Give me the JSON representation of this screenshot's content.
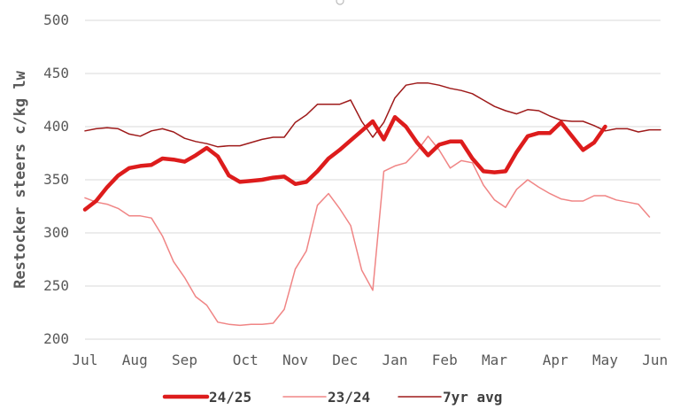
{
  "chart_data": {
    "type": "line",
    "title": "",
    "xlabel": "",
    "ylabel": "Restocker steers c/kg lw",
    "ylim": [
      200,
      500
    ],
    "yticks": [
      200,
      250,
      300,
      350,
      400,
      450,
      500
    ],
    "xlim": [
      1,
      53
    ],
    "x_ticks": [
      {
        "label": "Jul",
        "week": 1
      },
      {
        "label": "Aug",
        "week": 5.5
      },
      {
        "label": "Sep",
        "week": 10
      },
      {
        "label": "Oct",
        "week": 15.5
      },
      {
        "label": "Nov",
        "week": 20
      },
      {
        "label": "Dec",
        "week": 24.5
      },
      {
        "label": "Jan",
        "week": 29
      },
      {
        "label": "Feb",
        "week": 33.5
      },
      {
        "label": "Mar",
        "week": 38
      },
      {
        "label": "Apr",
        "week": 43.5
      },
      {
        "label": "May",
        "week": 48
      },
      {
        "label": "Jun",
        "week": 52.5
      }
    ],
    "grid": true,
    "legend_position": "bottom",
    "series": [
      {
        "name": "24/25",
        "color": "#dd1c1c",
        "width": 4.5,
        "x": [
          1,
          2,
          3,
          4,
          5,
          6,
          7,
          8,
          9,
          10,
          11,
          12,
          13,
          14,
          15,
          16,
          17,
          18,
          19,
          20,
          21,
          22,
          23,
          24,
          25,
          26,
          27,
          28,
          29,
          30,
          31,
          32,
          33,
          34,
          35,
          36,
          37,
          38,
          39,
          40,
          41,
          42,
          43,
          44,
          45,
          46,
          47,
          48,
          49,
          50,
          51
        ],
        "values": [
          322,
          330,
          343,
          354,
          361,
          363,
          364,
          370,
          369,
          367,
          373,
          380,
          372,
          354,
          348,
          349,
          350,
          352,
          353,
          346,
          348,
          358,
          370,
          378,
          387,
          396,
          405,
          388,
          409,
          400,
          385,
          373,
          383,
          386,
          386,
          370,
          358,
          357,
          358,
          376,
          391,
          394,
          394,
          404,
          391,
          378,
          385,
          400,
          null,
          null,
          null
        ]
      },
      {
        "name": "23/24",
        "color": "#f08585",
        "width": 1.5,
        "x": [
          1,
          2,
          3,
          4,
          5,
          6,
          7,
          8,
          9,
          10,
          11,
          12,
          13,
          14,
          15,
          16,
          17,
          18,
          19,
          20,
          21,
          22,
          23,
          24,
          25,
          26,
          27,
          28,
          29,
          30,
          31,
          32,
          33,
          34,
          35,
          36,
          37,
          38,
          39,
          40,
          41,
          42,
          43,
          44,
          45,
          46,
          47,
          48,
          49,
          50,
          51,
          52,
          53
        ],
        "values": [
          333,
          329,
          327,
          323,
          316,
          316,
          314,
          297,
          273,
          258,
          240,
          232,
          216,
          214,
          213,
          214,
          214,
          215,
          228,
          266,
          283,
          326,
          337,
          323,
          307,
          265,
          246,
          358,
          363,
          366,
          377,
          391,
          378,
          361,
          368,
          366,
          345,
          331,
          324,
          341,
          350,
          343,
          337,
          332,
          330,
          330,
          335,
          335,
          331,
          329,
          327,
          315,
          null
        ]
      },
      {
        "name": "7yr avg",
        "color": "#9e1a1a",
        "width": 1.5,
        "x": [
          1,
          2,
          3,
          4,
          5,
          6,
          7,
          8,
          9,
          10,
          11,
          12,
          13,
          14,
          15,
          16,
          17,
          18,
          19,
          20,
          21,
          22,
          23,
          24,
          25,
          26,
          27,
          28,
          29,
          30,
          31,
          32,
          33,
          34,
          35,
          36,
          37,
          38,
          39,
          40,
          41,
          42,
          43,
          44,
          45,
          46,
          47,
          48,
          49,
          50,
          51,
          52,
          53
        ],
        "values": [
          396,
          398,
          399,
          398,
          393,
          391,
          396,
          398,
          395,
          389,
          386,
          384,
          381,
          382,
          382,
          385,
          388,
          390,
          390,
          404,
          411,
          421,
          421,
          421,
          425,
          405,
          390,
          404,
          427,
          439,
          441,
          441,
          439,
          436,
          434,
          431,
          425,
          419,
          415,
          412,
          416,
          415,
          410,
          406,
          405,
          405,
          401,
          396,
          398,
          398,
          395,
          397,
          397
        ]
      }
    ]
  }
}
